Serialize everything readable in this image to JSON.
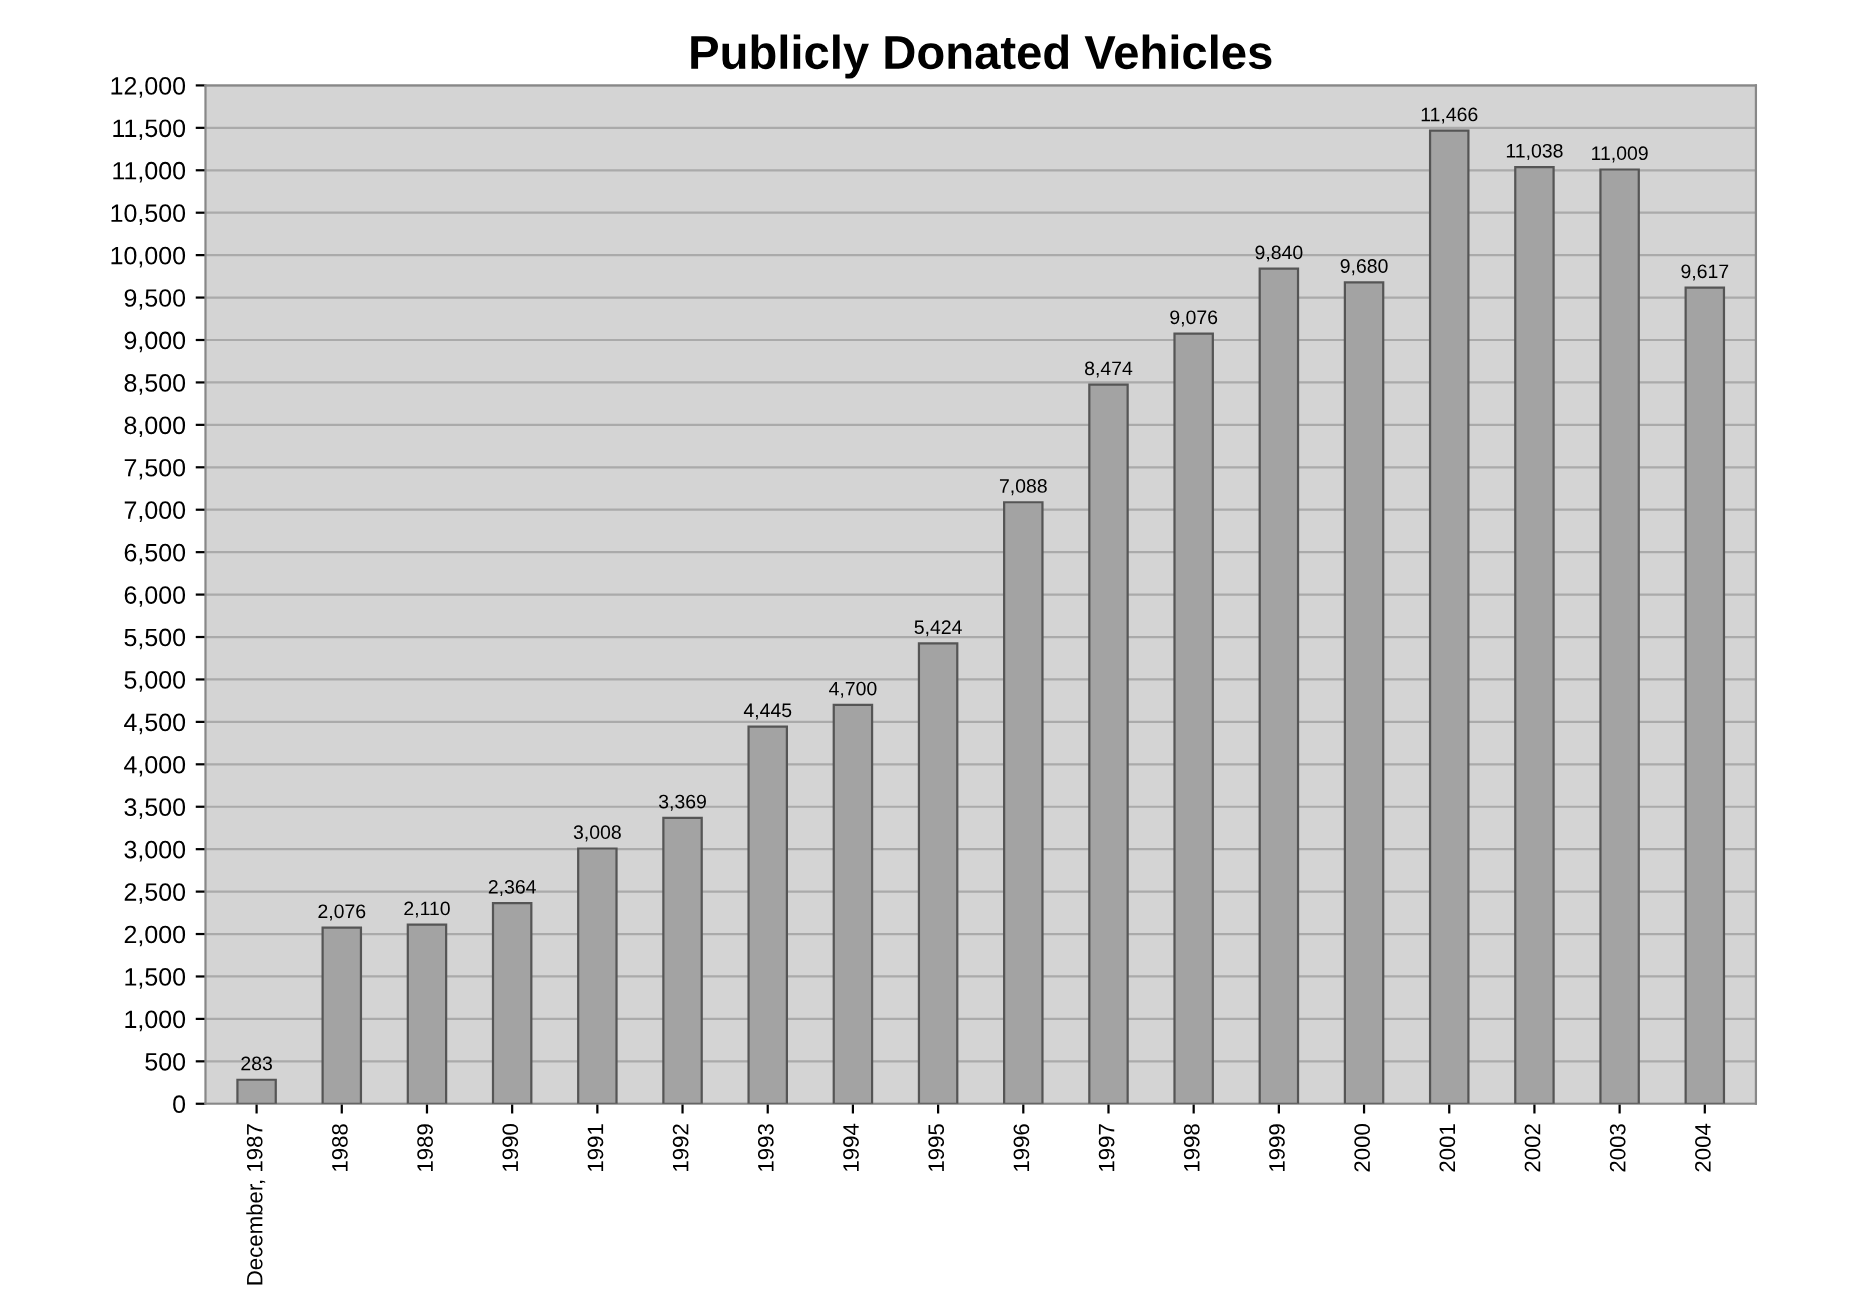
{
  "chart_data": {
    "type": "bar",
    "title": "Publicly Donated Vehicles",
    "categories": [
      "December, 1987",
      "1988",
      "1989",
      "1990",
      "1991",
      "1992",
      "1993",
      "1994",
      "1995",
      "1996",
      "1997",
      "1998",
      "1999",
      "2000",
      "2001",
      "2002",
      "2003",
      "2004"
    ],
    "values": [
      283,
      2076,
      2110,
      2364,
      3008,
      3369,
      4445,
      4700,
      5424,
      7088,
      8474,
      9076,
      9840,
      9680,
      11466,
      11038,
      11009,
      9617
    ],
    "color": "#a3a3a3",
    "ylim": [
      0,
      12000
    ],
    "yticks": [
      0,
      {
        "value": 500,
        "label": "500"
      },
      {
        "value": 1000,
        "label": "1,000"
      },
      {
        "value": 1500,
        "label": "1,500"
      },
      {
        "value": 2000,
        "label": "2,000"
      },
      {
        "value": 2500,
        "label": "2,500"
      },
      {
        "value": 3000,
        "label": "3,000"
      },
      {
        "value": 3500,
        "label": "3,500"
      },
      {
        "value": 4000,
        "label": "4,000"
      },
      {
        "value": 4500,
        "label": "4,500"
      },
      {
        "value": 5000,
        "label": "5,000"
      },
      {
        "value": 5500,
        "label": "5,500"
      },
      {
        "value": 6000,
        "label": "6,000"
      },
      {
        "value": 6500,
        "label": "6,500"
      },
      {
        "value": 7000,
        "label": "7,000"
      },
      {
        "value": 7500,
        "label": "7,500"
      },
      {
        "value": 8000,
        "label": "8,000"
      },
      {
        "value": 8500,
        "label": "8,500"
      },
      {
        "value": 9000,
        "label": "9,000"
      },
      {
        "value": 9500,
        "label": "9,500"
      },
      {
        "value": 10000,
        "label": "10,000"
      },
      {
        "value": 10500,
        "label": "10,500"
      },
      {
        "value": 11000,
        "label": "11,000"
      },
      {
        "value": 11500,
        "label": "11,500"
      },
      {
        "value": 12000,
        "label": "12,000"
      }
    ],
    "value_labels": [
      "283",
      "2,076",
      "2,110",
      "2,364",
      "3,008",
      "3,369",
      "4,445",
      "4,700",
      "5,424",
      "7,088",
      "8,474",
      "9,076",
      "9,840",
      "9,680",
      "11,466",
      "11,038",
      "11,009",
      "9,617"
    ],
    "grid": "y"
  }
}
